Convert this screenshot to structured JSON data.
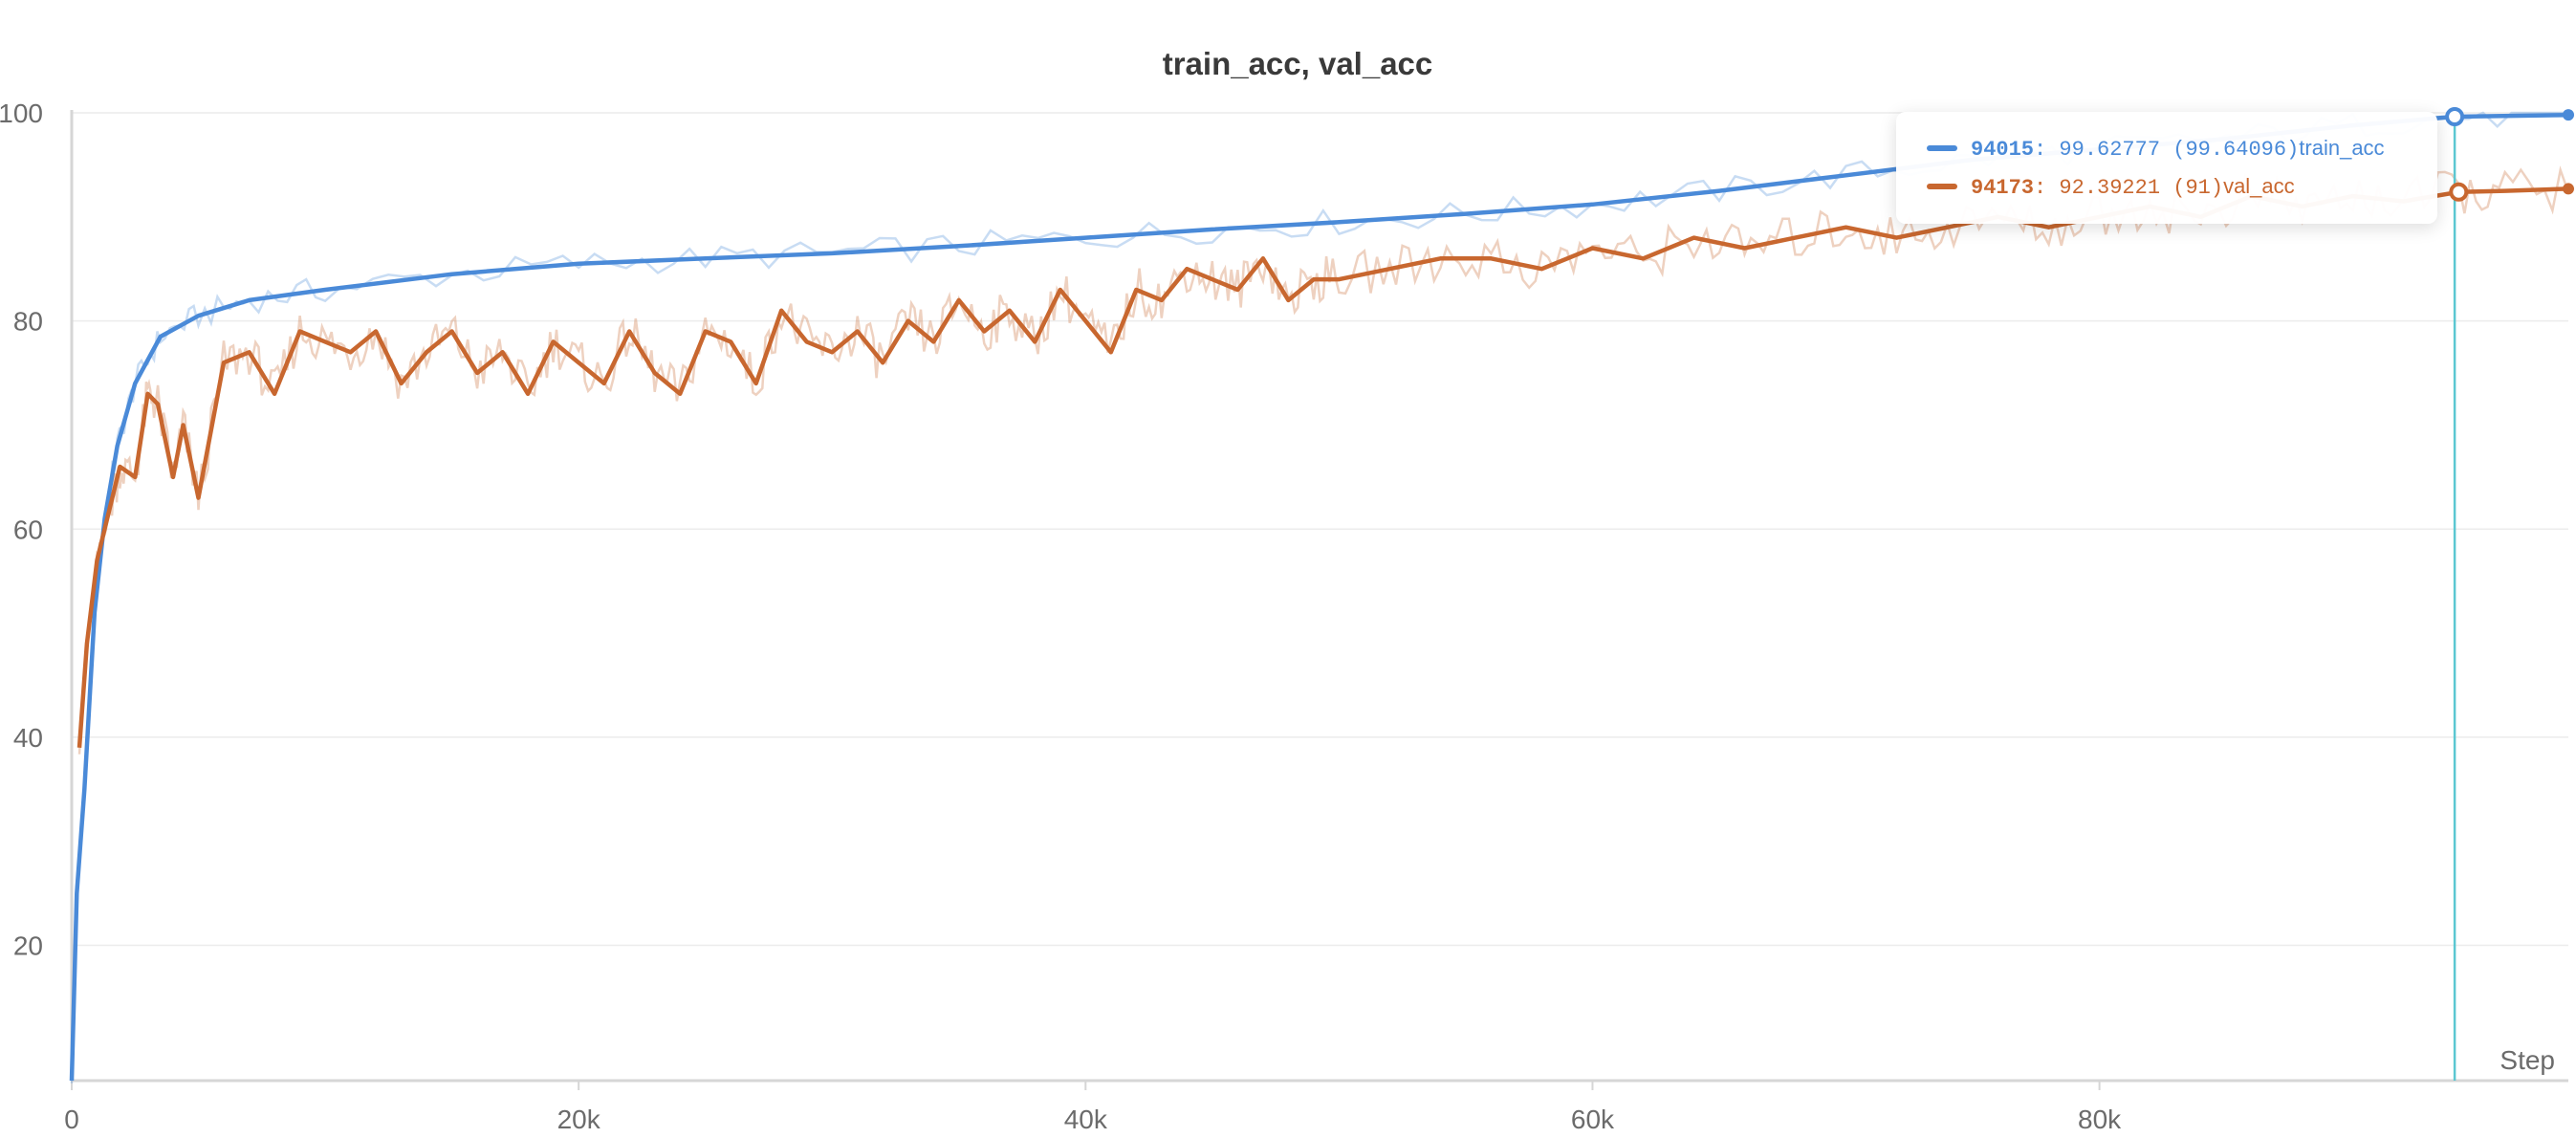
{
  "chart_data": {
    "type": "line",
    "title": "train_acc, val_acc",
    "xlabel": "Step",
    "ylabel": "",
    "xlim": [
      0,
      98500
    ],
    "ylim": [
      7,
      100
    ],
    "x_ticks": [
      0,
      20000,
      40000,
      60000,
      80000
    ],
    "x_tick_labels": [
      "0",
      "20k",
      "40k",
      "60k",
      "80k"
    ],
    "y_ticks": [
      20,
      40,
      60,
      80,
      100
    ],
    "y_tick_labels": [
      "20",
      "40",
      "60",
      "80",
      "100"
    ],
    "grid": true,
    "series": [
      {
        "name": "train_acc",
        "color": "#4a8ad8",
        "x": [
          0,
          200,
          500,
          900,
          1300,
          1800,
          2500,
          3500,
          5000,
          7000,
          10000,
          15000,
          20000,
          25000,
          30000,
          35000,
          40000,
          45000,
          50000,
          55000,
          60000,
          65000,
          70000,
          75000,
          80000,
          85000,
          90000,
          94015,
          98500
        ],
        "y": [
          7,
          25,
          35,
          52,
          61,
          68,
          74,
          78.5,
          80.5,
          82,
          83,
          84.5,
          85.5,
          86,
          86.5,
          87.2,
          88,
          88.8,
          89.5,
          90.3,
          91.2,
          92.5,
          94,
          95.5,
          96.5,
          97.5,
          98.8,
          99.63,
          99.8
        ]
      },
      {
        "name": "val_acc",
        "color": "#c8672f",
        "x": [
          300,
          600,
          1000,
          1400,
          1900,
          2500,
          3000,
          3400,
          4000,
          4400,
          5000,
          6000,
          7000,
          8000,
          9000,
          10000,
          11000,
          12000,
          13000,
          14000,
          15000,
          16000,
          17000,
          18000,
          19000,
          20000,
          21000,
          22000,
          23000,
          24000,
          25000,
          26000,
          27000,
          28000,
          29000,
          30000,
          31000,
          32000,
          33000,
          34000,
          35000,
          36000,
          37000,
          38000,
          39000,
          40000,
          41000,
          42000,
          43000,
          44000,
          45000,
          46000,
          47000,
          48000,
          49000,
          50000,
          52000,
          54000,
          56000,
          58000,
          60000,
          62000,
          64000,
          66000,
          68000,
          70000,
          72000,
          74000,
          76000,
          78000,
          80000,
          82000,
          84000,
          86000,
          88000,
          90000,
          92000,
          94173,
          96000,
          98500
        ],
        "y": [
          39,
          49,
          57,
          61,
          66,
          65,
          73,
          72,
          65,
          70,
          63,
          76,
          77,
          73,
          79,
          78,
          77,
          79,
          74,
          77,
          79,
          75,
          77,
          73,
          78,
          76,
          74,
          79,
          75,
          73,
          79,
          78,
          74,
          81,
          78,
          77,
          79,
          76,
          80,
          78,
          82,
          79,
          81,
          78,
          83,
          80,
          77,
          83,
          82,
          85,
          84,
          83,
          86,
          82,
          84,
          84,
          85,
          86,
          86,
          85,
          87,
          86,
          88,
          87,
          88,
          89,
          88,
          89,
          90,
          89,
          90,
          91,
          90,
          92,
          91,
          92,
          91.5,
          92.39,
          92.5,
          92.7
        ]
      }
    ],
    "cursor_x": 94015,
    "tooltip": {
      "rows": [
        {
          "step": "94015",
          "value": "99.62777",
          "extra": "(99.64096)",
          "name": "train_acc",
          "color": "#4a8ad8"
        },
        {
          "step": "94173",
          "value": "92.39221",
          "extra": "(91)",
          "name": "val_acc",
          "color": "#c8672f"
        }
      ]
    },
    "cursor_color": "#5bc7d1"
  }
}
